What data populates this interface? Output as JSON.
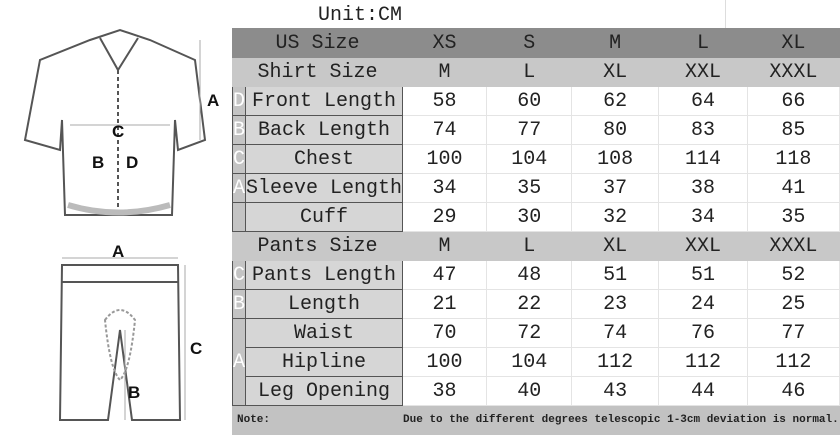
{
  "unit": "Unit:CM",
  "figure": {
    "jersey_labels": [
      "A",
      "C",
      "B",
      "D"
    ],
    "shorts_labels": [
      "A",
      "C",
      "B"
    ]
  },
  "header": {
    "label": "US Size",
    "sizes": [
      "XS",
      "S",
      "M",
      "L",
      "XL"
    ]
  },
  "shirt": {
    "label": "Shirt Size",
    "sizes": [
      "M",
      "L",
      "XL",
      "XXL",
      "XXXL"
    ],
    "rows": [
      {
        "letter": "D",
        "label": "Front Length",
        "values": [
          "58",
          "60",
          "62",
          "64",
          "66"
        ]
      },
      {
        "letter": "B",
        "label": "Back Length",
        "values": [
          "74",
          "77",
          "80",
          "83",
          "85"
        ]
      },
      {
        "letter": "C",
        "label": "Chest",
        "values": [
          "100",
          "104",
          "108",
          "114",
          "118"
        ]
      },
      {
        "letter": "A",
        "label": "Sleeve Length",
        "values": [
          "34",
          "35",
          "37",
          "38",
          "41"
        ]
      },
      {
        "letter": "",
        "label": "Cuff",
        "values": [
          "29",
          "30",
          "32",
          "34",
          "35"
        ]
      }
    ]
  },
  "pants": {
    "label": "Pants Size",
    "sizes": [
      "M",
      "L",
      "XL",
      "XXL",
      "XXXL"
    ],
    "rows": [
      {
        "letter": "C",
        "label": "Pants Length",
        "values": [
          "47",
          "48",
          "51",
          "51",
          "52"
        ]
      },
      {
        "letter": "B",
        "label": "Length",
        "values": [
          "21",
          "22",
          "23",
          "24",
          "25"
        ]
      },
      {
        "letter": "A",
        "label": "Waist",
        "values": [
          "70",
          "72",
          "74",
          "76",
          "77"
        ]
      },
      {
        "letter": "",
        "label": "Hipline",
        "values": [
          "100",
          "104",
          "112",
          "112",
          "112"
        ]
      },
      {
        "letter": "",
        "label": "Leg Opening",
        "values": [
          "38",
          "40",
          "43",
          "44",
          "46"
        ]
      }
    ]
  },
  "note": {
    "label": "Note:",
    "text": "Due to the different degrees telescopic 1-3cm deviation is normal."
  }
}
